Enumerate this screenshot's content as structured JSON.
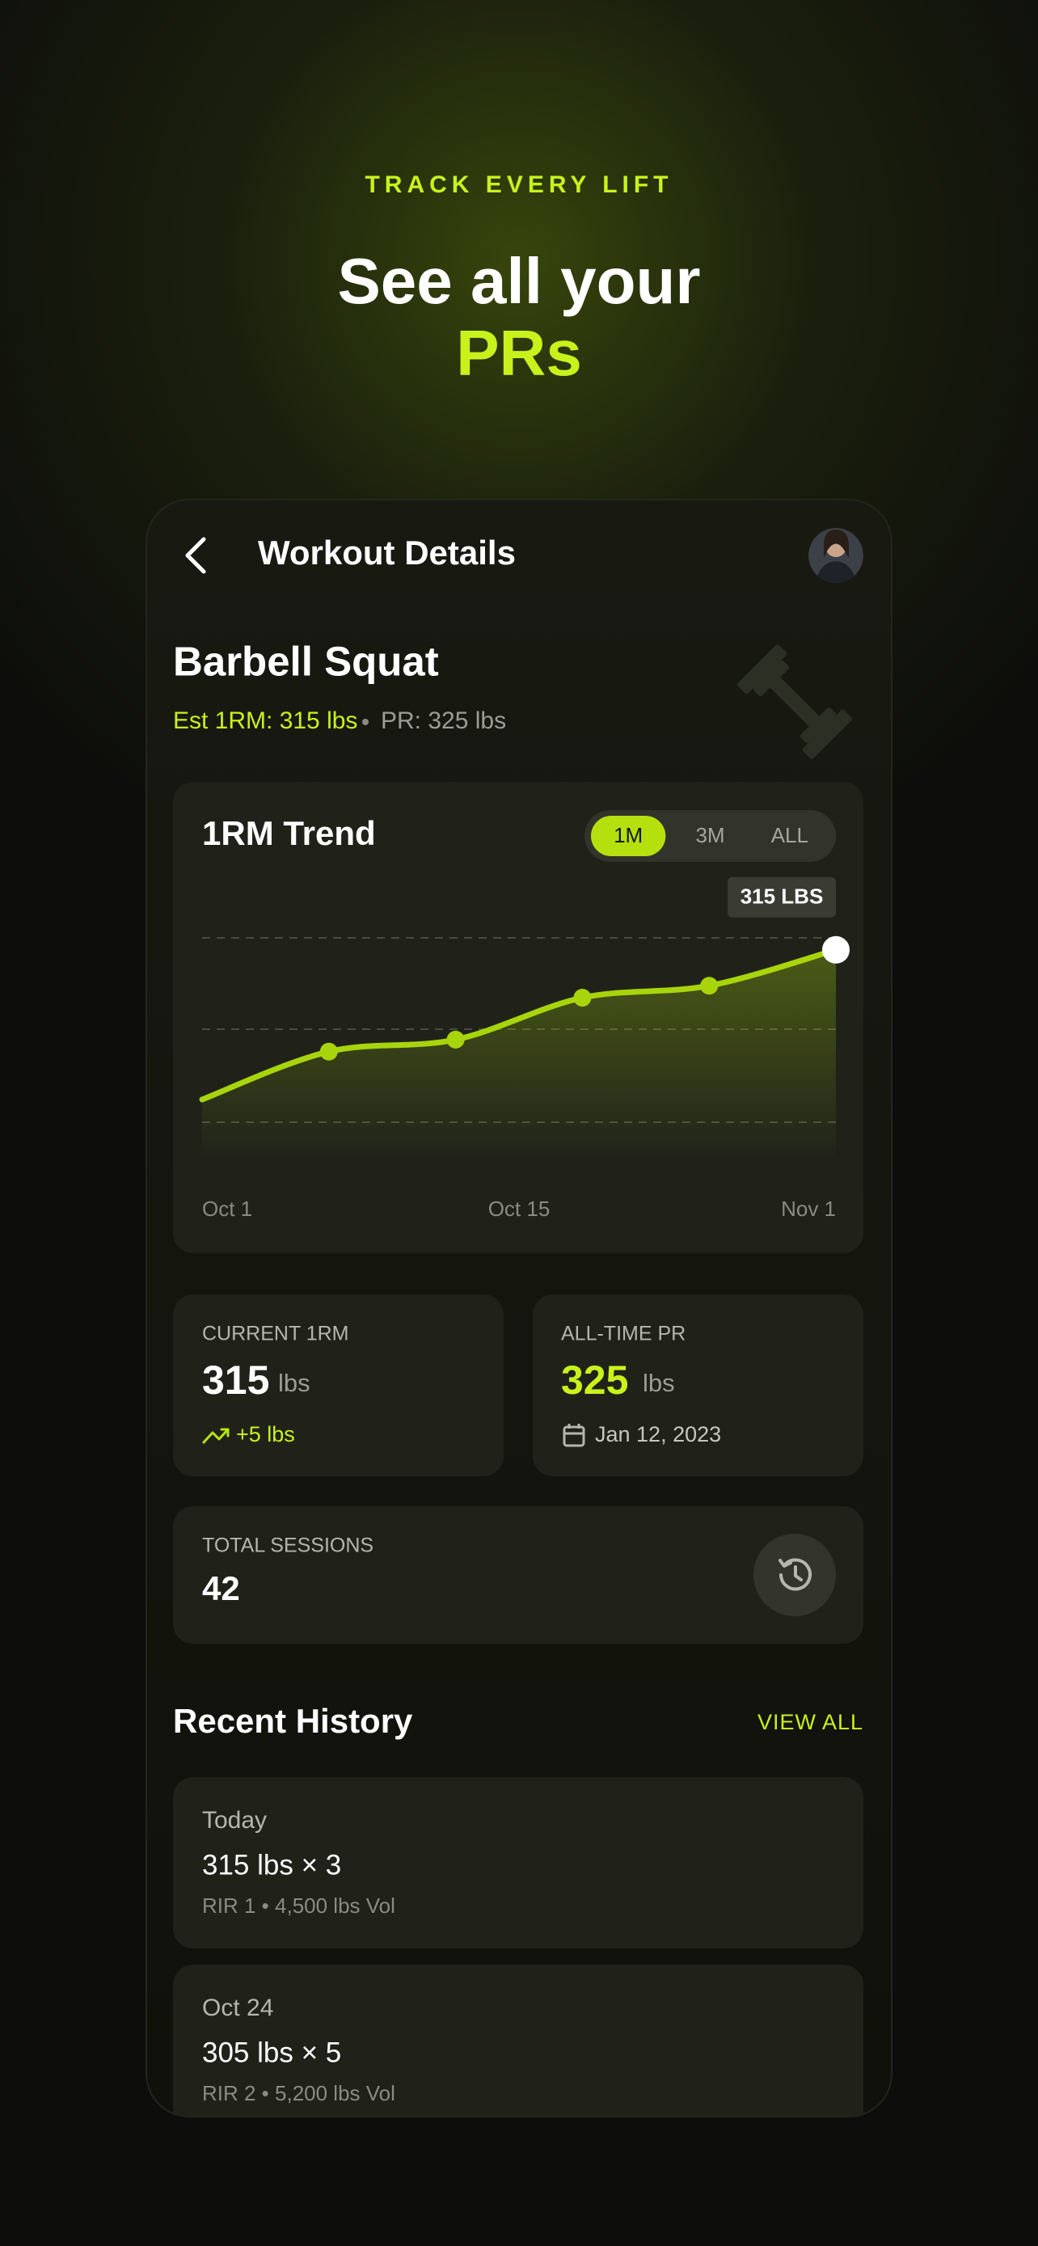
{
  "header": {
    "eyebrow": "TRACK EVERY LIFT",
    "title_line1": "See all your",
    "title_highlight": "PRs"
  },
  "screen": {
    "title": "Workout Details"
  },
  "exercise": {
    "name": "Barbell Squat",
    "est_1rm": "Est 1RM: 315 lbs",
    "pr": "PR: 325 lbs"
  },
  "chart_data": {
    "type": "line",
    "title": "1RM Trend",
    "ranges": [
      "1M",
      "3M",
      "ALL"
    ],
    "active_range": "1M",
    "x_labels": [
      "Oct 1",
      "Oct 15",
      "Nov 1"
    ],
    "values": [
      290,
      298,
      300,
      307,
      309,
      315
    ],
    "value_labels": [
      null,
      null,
      null,
      null,
      null,
      "315 LBS"
    ],
    "ylim": [
      280,
      317
    ],
    "color": "#a8d40c",
    "area": true
  },
  "stats": [
    {
      "label": "CURRENT 1RM",
      "value": 315,
      "unit": "lbs",
      "note": "+5 lbs"
    },
    {
      "label": "ALL-TIME PR",
      "value": 325,
      "unit": "lbs",
      "note": "Jan 12, 2023"
    }
  ],
  "sessions": {
    "label": "TOTAL SESSIONS",
    "value": 42
  },
  "history": {
    "title": "Recent History",
    "action": "VIEW ALL",
    "items": [
      {
        "date": "Today",
        "set": "315 lbs × 3",
        "details": "RIR 1 • 4,500 lbs Vol"
      },
      {
        "date": "Oct 24",
        "set": "305 lbs × 5",
        "details": "RIR 2 • 5,200 lbs Vol"
      }
    ]
  }
}
